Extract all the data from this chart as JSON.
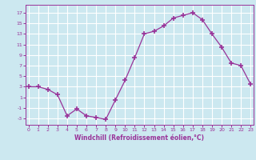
{
  "x": [
    0,
    1,
    2,
    3,
    4,
    5,
    6,
    7,
    8,
    9,
    10,
    11,
    12,
    13,
    14,
    15,
    16,
    17,
    18,
    19,
    20,
    21,
    22,
    23
  ],
  "y": [
    3,
    3,
    2.5,
    1.5,
    -2.5,
    -1.2,
    -2.5,
    -2.8,
    -3.2,
    0.5,
    4.2,
    8.5,
    13,
    13.5,
    14.5,
    16,
    16.5,
    17,
    15.7,
    13,
    10.5,
    7.5,
    7,
    3.5
  ],
  "line_color": "#993399",
  "marker_color": "#993399",
  "bg_color": "#cce8f0",
  "grid_color": "#aaccdd",
  "xlabel": "Windchill (Refroidissement éolien,°C)",
  "xlabel_color": "#993399",
  "yticks": [
    -3,
    -1,
    1,
    3,
    5,
    7,
    9,
    11,
    13,
    15,
    17
  ],
  "xticks": [
    0,
    1,
    2,
    3,
    4,
    5,
    6,
    7,
    8,
    9,
    10,
    11,
    12,
    13,
    14,
    15,
    16,
    17,
    18,
    19,
    20,
    21,
    22,
    23
  ],
  "ylim": [
    -4.2,
    18.5
  ],
  "xlim": [
    -0.3,
    23.3
  ]
}
